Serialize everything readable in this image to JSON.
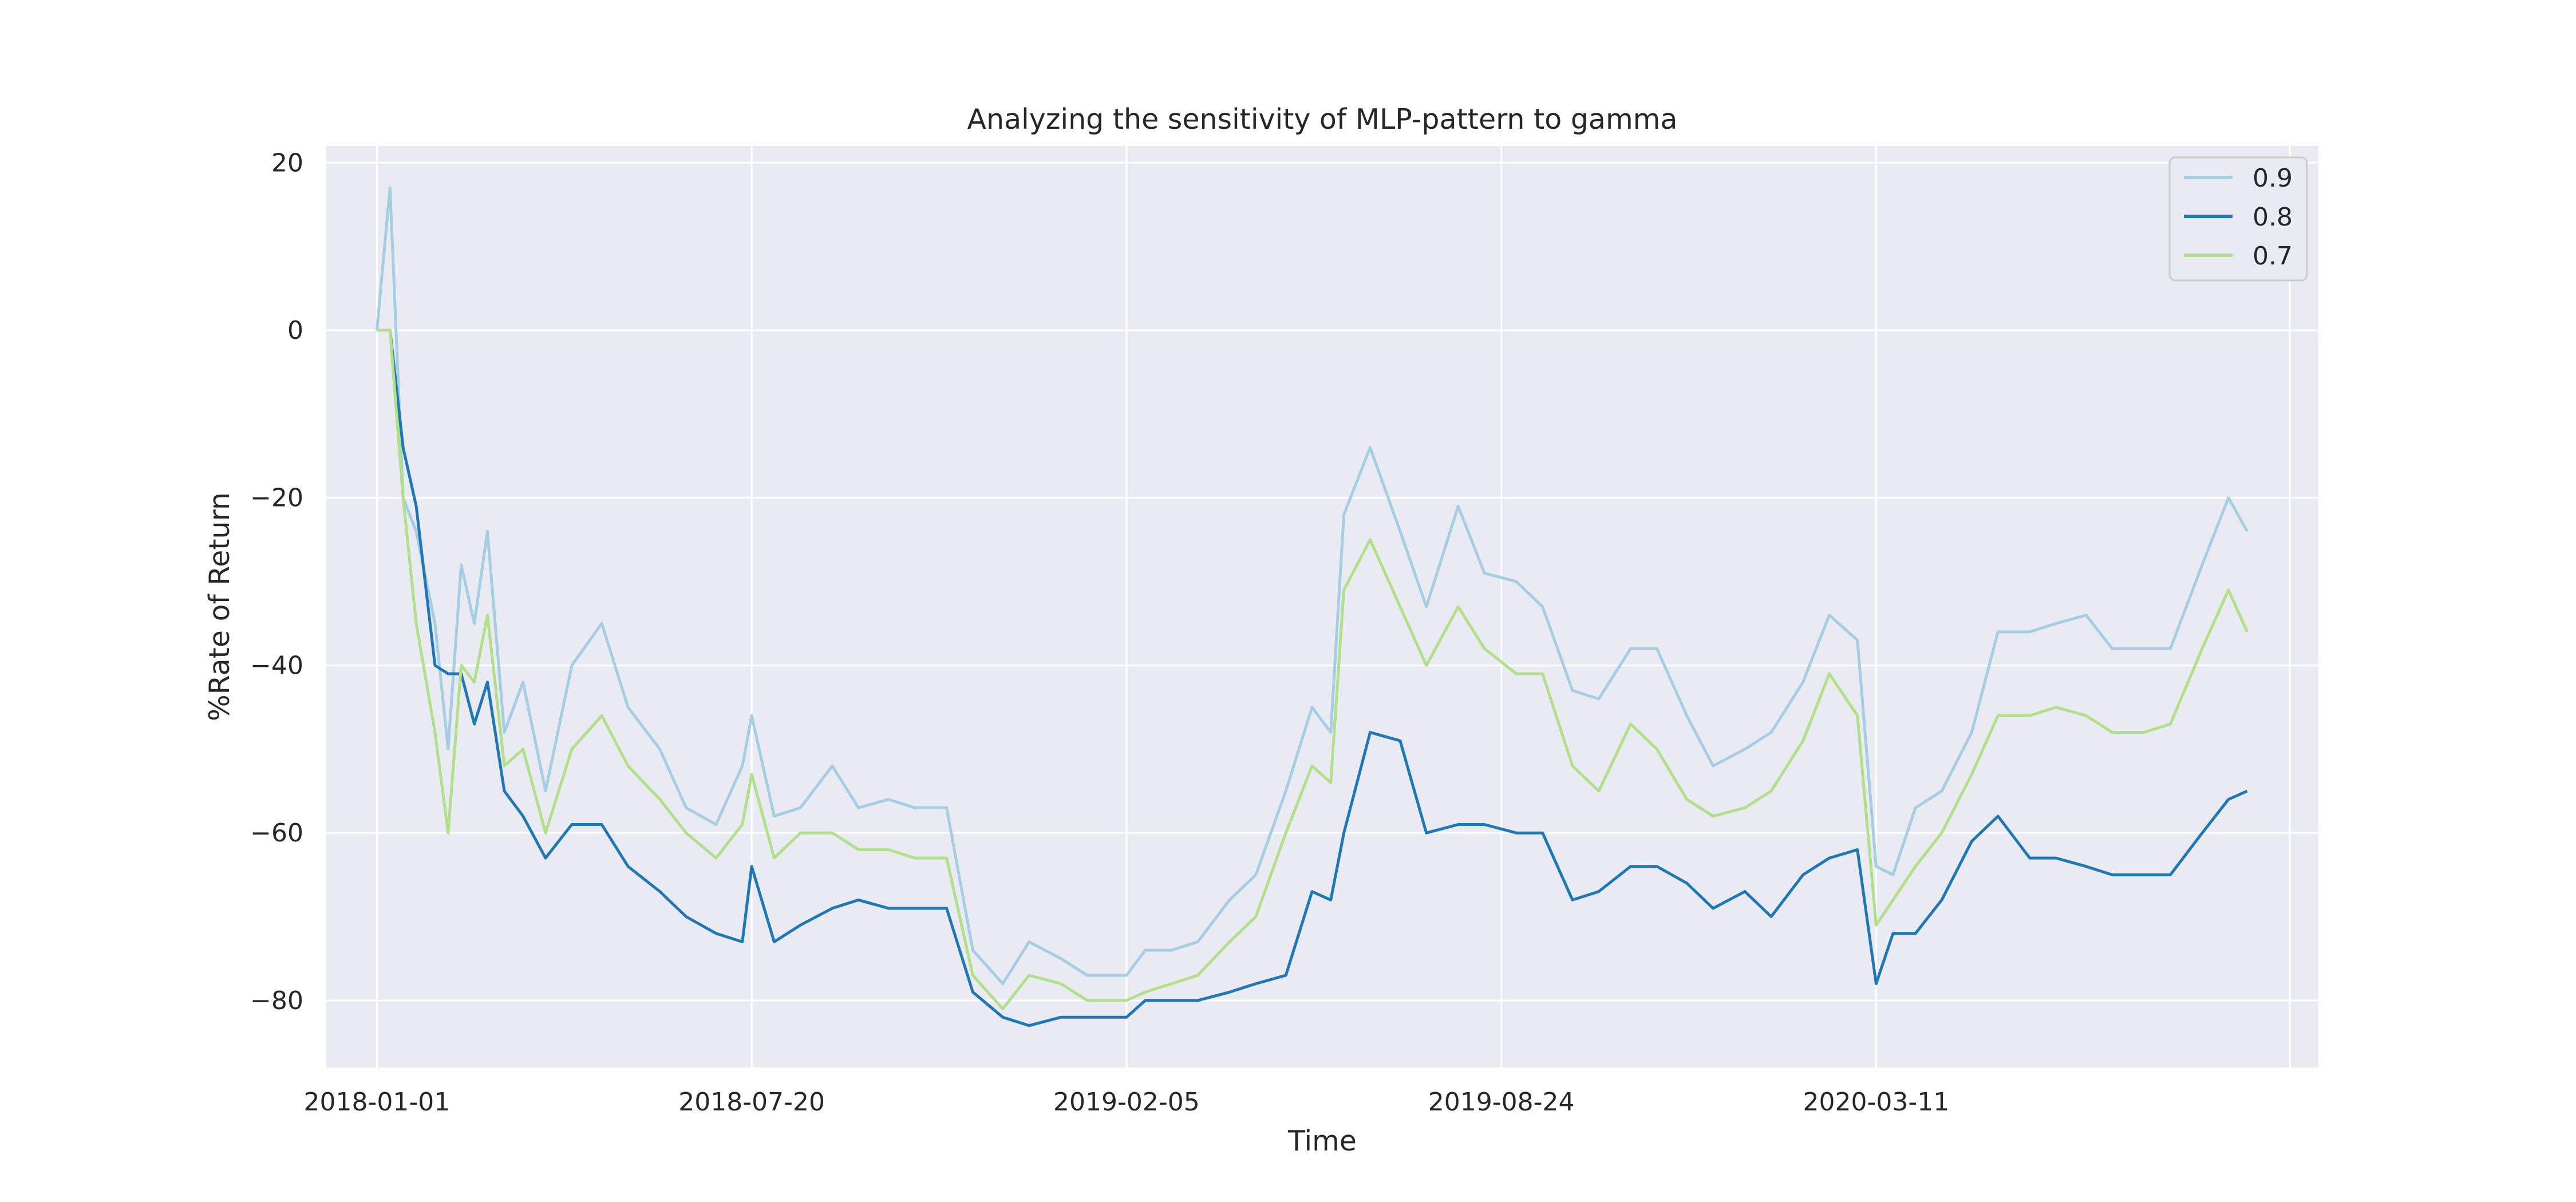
{
  "chart_data": {
    "type": "line",
    "title": "Analyzing the sensitivity of MLP-pattern to gamma",
    "xlabel": "Time",
    "ylabel": "%Rate of Return",
    "x_ticks": [
      "2018-01-01",
      "2018-07-20",
      "2019-02-05",
      "2019-08-24",
      "2020-03-11"
    ],
    "x_range": [
      "2017-12-05",
      "2020-11-02"
    ],
    "y_ticks": [
      20,
      0,
      -20,
      -40,
      -60,
      -80
    ],
    "ylim": [
      -88,
      22
    ],
    "grid": true,
    "legend_position": "top-right",
    "x": [
      "2018-01-01",
      "2018-01-08",
      "2018-01-15",
      "2018-01-22",
      "2018-02-01",
      "2018-02-08",
      "2018-02-15",
      "2018-02-22",
      "2018-03-01",
      "2018-03-10",
      "2018-03-20",
      "2018-04-01",
      "2018-04-15",
      "2018-05-01",
      "2018-05-15",
      "2018-06-01",
      "2018-06-15",
      "2018-07-01",
      "2018-07-15",
      "2018-07-20",
      "2018-08-01",
      "2018-08-15",
      "2018-09-01",
      "2018-09-15",
      "2018-10-01",
      "2018-10-15",
      "2018-11-01",
      "2018-11-15",
      "2018-12-01",
      "2018-12-15",
      "2019-01-01",
      "2019-01-15",
      "2019-02-05",
      "2019-02-15",
      "2019-03-01",
      "2019-03-15",
      "2019-04-01",
      "2019-04-15",
      "2019-05-01",
      "2019-05-15",
      "2019-05-25",
      "2019-06-01",
      "2019-06-15",
      "2019-07-01",
      "2019-07-15",
      "2019-08-01",
      "2019-08-15",
      "2019-09-01",
      "2019-09-15",
      "2019-10-01",
      "2019-10-15",
      "2019-11-01",
      "2019-11-15",
      "2019-12-01",
      "2019-12-15",
      "2020-01-01",
      "2020-01-15",
      "2020-02-01",
      "2020-02-15",
      "2020-03-01",
      "2020-03-11",
      "2020-03-20",
      "2020-04-01",
      "2020-04-15",
      "2020-05-01",
      "2020-05-15",
      "2020-06-01",
      "2020-06-15",
      "2020-07-01",
      "2020-07-15",
      "2020-08-01",
      "2020-08-15",
      "2020-09-01",
      "2020-09-15",
      "2020-09-25"
    ],
    "series": [
      {
        "name": "0.9",
        "color": "#a6cee3",
        "values": [
          0,
          17,
          -20,
          -24,
          -35,
          -50,
          -28,
          -35,
          -24,
          -48,
          -42,
          -55,
          -40,
          -35,
          -45,
          -50,
          -57,
          -59,
          -52,
          -46,
          -58,
          -57,
          -52,
          -57,
          -56,
          -57,
          -57,
          -74,
          -78,
          -73,
          -75,
          -77,
          -77,
          -74,
          -74,
          -73,
          -68,
          -65,
          -55,
          -45,
          -48,
          -22,
          -14,
          -24,
          -33,
          -21,
          -29,
          -30,
          -33,
          -43,
          -44,
          -38,
          -38,
          -46,
          -52,
          -50,
          -48,
          -42,
          -34,
          -37,
          -64,
          -65,
          -57,
          -55,
          -48,
          -36,
          -36,
          -35,
          -34,
          -38,
          -38,
          -38,
          -28,
          -20,
          -24
        ]
      },
      {
        "name": "0.8",
        "color": "#1f78b4",
        "values": [
          0,
          0,
          -14,
          -21,
          -40,
          -41,
          -41,
          -47,
          -42,
          -55,
          -58,
          -63,
          -59,
          -59,
          -64,
          -67,
          -70,
          -72,
          -73,
          -64,
          -73,
          -71,
          -69,
          -68,
          -69,
          -69,
          -69,
          -79,
          -82,
          -83,
          -82,
          -82,
          -82,
          -80,
          -80,
          -80,
          -79,
          -78,
          -77,
          -67,
          -68,
          -60,
          -48,
          -49,
          -60,
          -59,
          -59,
          -60,
          -60,
          -68,
          -67,
          -64,
          -64,
          -66,
          -69,
          -67,
          -70,
          -65,
          -63,
          -62,
          -78,
          -72,
          -72,
          -68,
          -61,
          -58,
          -63,
          -63,
          -64,
          -65,
          -65,
          -65,
          -60,
          -56,
          -55
        ]
      },
      {
        "name": "0.7",
        "color": "#b2df8a",
        "values": [
          0,
          0,
          -20,
          -35,
          -48,
          -60,
          -40,
          -42,
          -34,
          -52,
          -50,
          -60,
          -50,
          -46,
          -52,
          -56,
          -60,
          -63,
          -59,
          -53,
          -63,
          -60,
          -60,
          -62,
          -62,
          -63,
          -63,
          -77,
          -81,
          -77,
          -78,
          -80,
          -80,
          -79,
          -78,
          -77,
          -73,
          -70,
          -60,
          -52,
          -54,
          -31,
          -25,
          -33,
          -40,
          -33,
          -38,
          -41,
          -41,
          -52,
          -55,
          -47,
          -50,
          -56,
          -58,
          -57,
          -55,
          -49,
          -41,
          -46,
          -71,
          -68,
          -64,
          -60,
          -53,
          -46,
          -46,
          -45,
          -46,
          -48,
          -48,
          -47,
          -38,
          -31,
          -36
        ]
      }
    ]
  }
}
